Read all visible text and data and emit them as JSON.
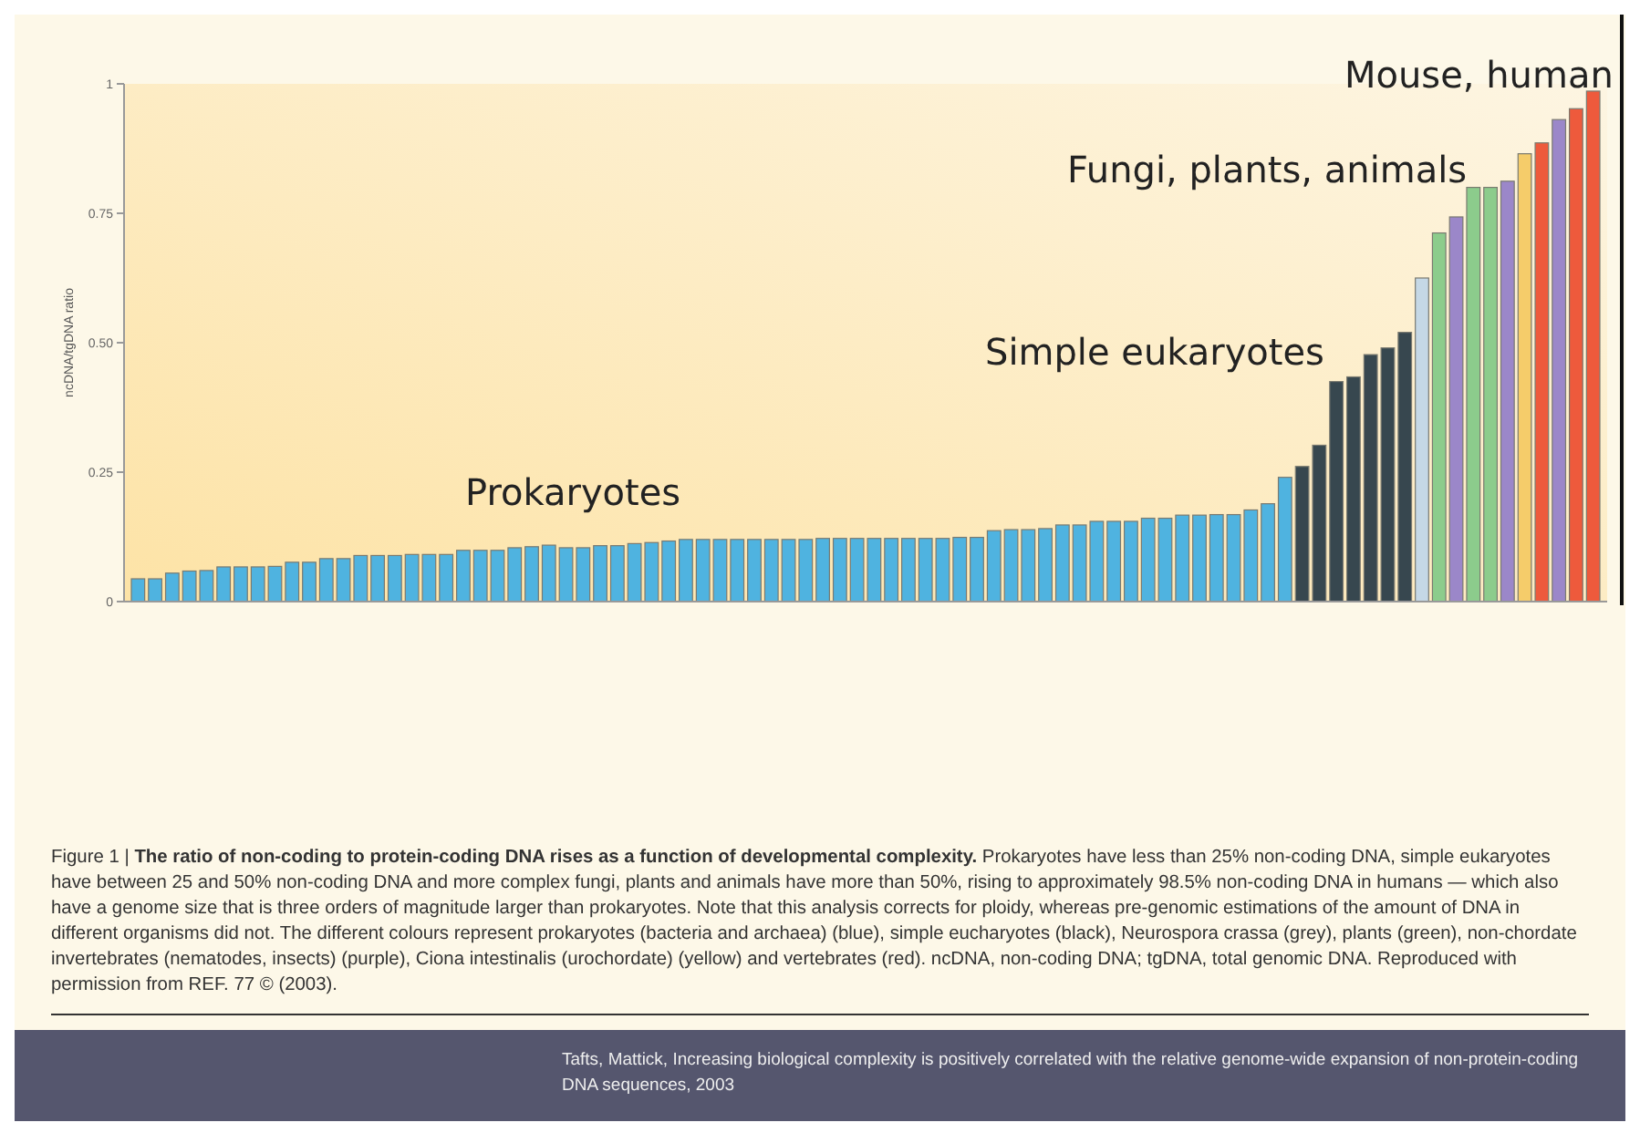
{
  "chart_data": {
    "type": "bar",
    "title": "The ratio of non-coding to protein-coding DNA rises as a function of developmental complexity.",
    "ylabel": "ncDNA/tgDNA ratio",
    "categories": [
      null,
      null,
      null,
      null,
      null,
      null,
      null,
      null,
      null,
      null,
      null,
      null,
      null,
      null,
      null,
      null,
      null,
      null,
      null,
      null,
      null,
      null,
      null,
      null,
      null,
      null,
      null,
      null,
      null,
      null,
      null,
      null,
      null,
      null,
      null,
      null,
      null,
      null,
      null,
      null,
      null,
      null,
      null,
      null,
      null,
      null,
      null,
      null,
      null,
      null,
      null,
      null,
      null,
      null,
      null,
      null,
      null,
      null,
      null,
      null,
      null,
      null,
      null,
      null,
      null,
      null,
      null,
      null,
      null,
      null,
      null,
      null,
      null,
      null,
      null,
      null,
      null,
      null,
      null,
      null,
      null,
      null,
      null,
      null,
      null,
      null
    ],
    "values": [
      0.044,
      0.044,
      0.055,
      0.059,
      0.06,
      0.067,
      0.067,
      0.067,
      0.068,
      0.076,
      0.076,
      0.083,
      0.083,
      0.089,
      0.089,
      0.089,
      0.091,
      0.091,
      0.091,
      0.099,
      0.099,
      0.099,
      0.104,
      0.106,
      0.109,
      0.104,
      0.104,
      0.108,
      0.108,
      0.112,
      0.114,
      0.117,
      0.12,
      0.12,
      0.12,
      0.12,
      0.12,
      0.12,
      0.12,
      0.12,
      0.122,
      0.122,
      0.122,
      0.122,
      0.122,
      0.122,
      0.122,
      0.122,
      0.124,
      0.124,
      0.137,
      0.139,
      0.139,
      0.141,
      0.148,
      0.148,
      0.155,
      0.155,
      0.155,
      0.161,
      0.161,
      0.167,
      0.167,
      0.168,
      0.168,
      0.177,
      0.189,
      0.24,
      0.261,
      0.302,
      0.425,
      0.434,
      0.477,
      0.49,
      0.52,
      0.625,
      0.712,
      0.743,
      0.8,
      0.8,
      0.812,
      0.865,
      0.886,
      0.931,
      0.952,
      0.986
    ],
    "colors": [
      "#4fb3e0",
      "#4fb3e0",
      "#4fb3e0",
      "#4fb3e0",
      "#4fb3e0",
      "#4fb3e0",
      "#4fb3e0",
      "#4fb3e0",
      "#4fb3e0",
      "#4fb3e0",
      "#4fb3e0",
      "#4fb3e0",
      "#4fb3e0",
      "#4fb3e0",
      "#4fb3e0",
      "#4fb3e0",
      "#4fb3e0",
      "#4fb3e0",
      "#4fb3e0",
      "#4fb3e0",
      "#4fb3e0",
      "#4fb3e0",
      "#4fb3e0",
      "#4fb3e0",
      "#4fb3e0",
      "#4fb3e0",
      "#4fb3e0",
      "#4fb3e0",
      "#4fb3e0",
      "#4fb3e0",
      "#4fb3e0",
      "#4fb3e0",
      "#4fb3e0",
      "#4fb3e0",
      "#4fb3e0",
      "#4fb3e0",
      "#4fb3e0",
      "#4fb3e0",
      "#4fb3e0",
      "#4fb3e0",
      "#4fb3e0",
      "#4fb3e0",
      "#4fb3e0",
      "#4fb3e0",
      "#4fb3e0",
      "#4fb3e0",
      "#4fb3e0",
      "#4fb3e0",
      "#4fb3e0",
      "#4fb3e0",
      "#4fb3e0",
      "#4fb3e0",
      "#4fb3e0",
      "#4fb3e0",
      "#4fb3e0",
      "#4fb3e0",
      "#4fb3e0",
      "#4fb3e0",
      "#4fb3e0",
      "#4fb3e0",
      "#4fb3e0",
      "#4fb3e0",
      "#4fb3e0",
      "#4fb3e0",
      "#4fb3e0",
      "#4fb3e0",
      "#4fb3e0",
      "#4fb3e0",
      "#37474f",
      "#37474f",
      "#37474f",
      "#37474f",
      "#37474f",
      "#37474f",
      "#37474f",
      "#c5d8e6",
      "#8ccc8c",
      "#9b87c9",
      "#8ccc8c",
      "#8ccc8c",
      "#9b87c9",
      "#f5cc6a",
      "#ee5a3c",
      "#9b87c9",
      "#ee5a3c",
      "#ee5a3c"
    ],
    "ylim": [
      0,
      1
    ],
    "yticks": [
      0,
      {
        "value": 0.25,
        "label": "0.25"
      },
      {
        "value": 0.5,
        "label": "0.50"
      },
      {
        "value": 0.75,
        "label": "0.75"
      },
      1
    ],
    "annotations": [
      "Prokaryotes",
      "Simple eukaryotes",
      "Fungi, plants, animals",
      "Mouse, human",
      "Figure 1 |",
      "Prokaryotes have less than 25% non-coding DNA, simple eukaryotes have between 25 and 50% non-coding DNA and more complex fungi, plants and animals have more than 50%, rising to approximately 98.5% non-coding DNA in humans — which also have a genome size that is three orders of magnitude larger than prokaryotes. Note that this analysis corrects for ploidy, whereas pre-genomic estimations of the amount of DNA in different organisms did not. The different colours represent prokaryotes (bacteria and archaea) (blue), simple eucharyotes (black), Neurospora crassa (grey), plants (green), non-chordate invertebrates (nematodes, insects) (purple), Ciona intestinalis (urochordate) (yellow) and vertebrates (red). ncDNA, non-coding DNA; tgDNA, total genomic DNA. Reproduced with permission from REF. 77 © (2003).",
      "Tafts, Mattick, Increasing biological complexity is positively correlated with the relative genome-wide expansion of non-protein-coding DNA sequences, 2003"
    ]
  }
}
